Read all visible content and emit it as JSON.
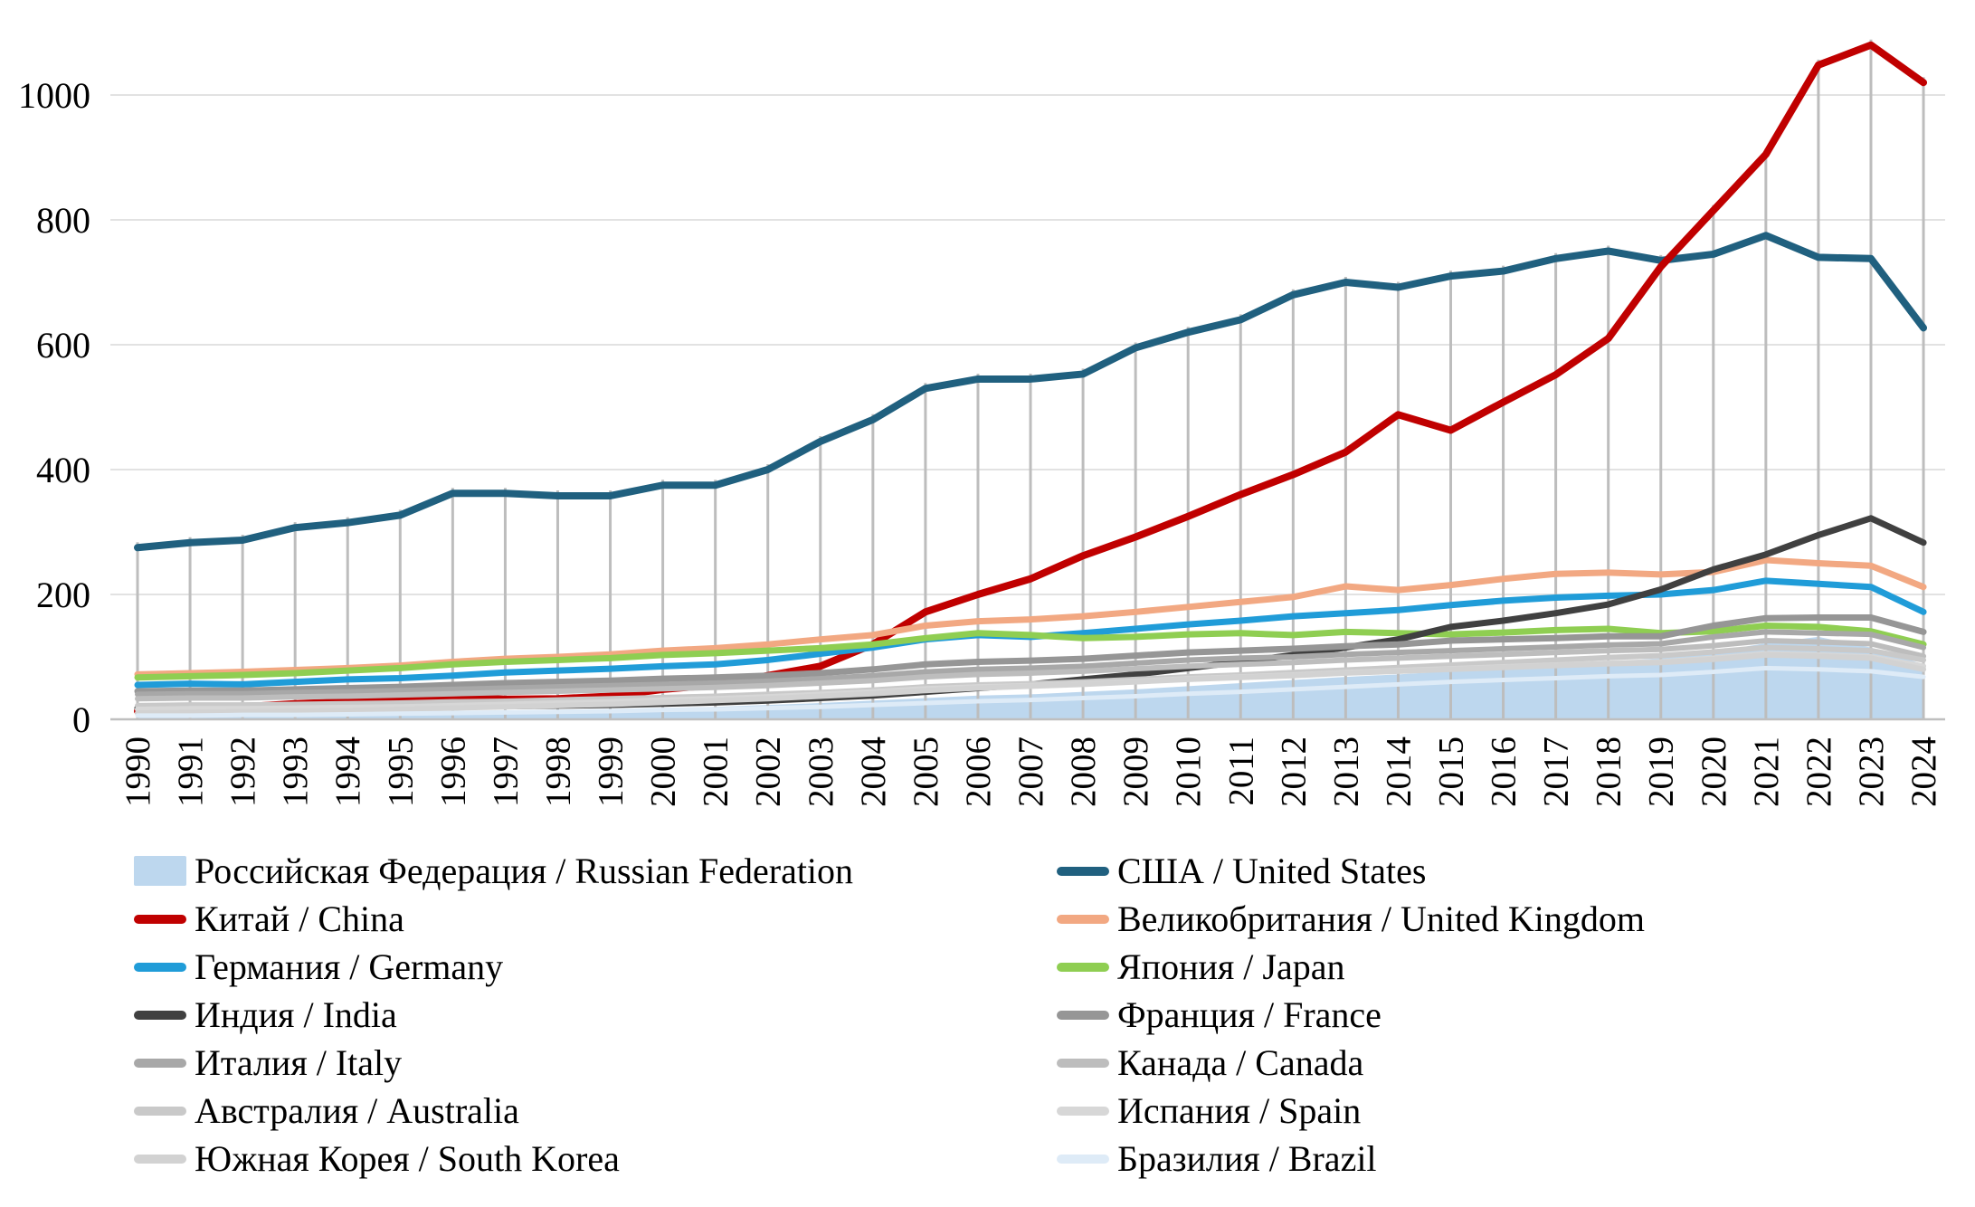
{
  "chart_data": {
    "type": "line",
    "note_layout": {
      "grid": "horizontal gridlines + vertical drop lines to top series",
      "legend_position": "bottom, two columns"
    },
    "x": [
      1990,
      1991,
      1992,
      1993,
      1994,
      1995,
      1996,
      1997,
      1998,
      1999,
      2000,
      2001,
      2002,
      2003,
      2004,
      2005,
      2006,
      2007,
      2008,
      2009,
      2010,
      2011,
      2012,
      2013,
      2014,
      2015,
      2016,
      2017,
      2018,
      2019,
      2020,
      2021,
      2022,
      2023,
      2024
    ],
    "yticks": [
      0,
      200,
      400,
      600,
      800,
      1000
    ],
    "ylim": [
      0,
      1100
    ],
    "colors": {
      "gridline": "#E2E2E2",
      "axis_line": "#BFBFBF",
      "drop_line": "#BDBDBD",
      "text": "#000000"
    },
    "series": [
      {
        "slug": "russia",
        "label": "Российская Федерация / Russian Federation",
        "type": "area",
        "color": "#BDD7EE",
        "width": 0,
        "values": [
          8,
          9,
          9,
          10,
          11,
          12,
          13,
          14,
          15,
          16,
          18,
          20,
          23,
          26,
          30,
          34,
          38,
          40,
          44,
          48,
          53,
          58,
          63,
          68,
          72,
          77,
          82,
          86,
          92,
          98,
          108,
          122,
          132,
          115,
          88
        ]
      },
      {
        "slug": "usa",
        "label": "США / United States",
        "type": "line",
        "color": "#20607F",
        "width": 8,
        "values": [
          275,
          283,
          287,
          307,
          315,
          327,
          362,
          362,
          358,
          358,
          375,
          375,
          400,
          445,
          480,
          530,
          545,
          545,
          553,
          595,
          620,
          640,
          680,
          700,
          692,
          710,
          718,
          738,
          750,
          735,
          745,
          775,
          740,
          738,
          627
        ]
      },
      {
        "slug": "china",
        "label": "Китай / China",
        "type": "line",
        "color": "#C00000",
        "width": 8,
        "values": [
          13,
          15,
          20,
          25,
          28,
          30,
          36,
          32,
          33,
          37,
          48,
          55,
          70,
          85,
          120,
          172,
          200,
          225,
          262,
          292,
          325,
          360,
          392,
          428,
          488,
          463,
          508,
          552,
          610,
          725,
          815,
          905,
          1048,
          1080,
          1020
        ]
      },
      {
        "slug": "uk",
        "label": "Великобритания / United Kingdom",
        "type": "line",
        "color": "#F2A882",
        "width": 7,
        "values": [
          72,
          74,
          76,
          79,
          82,
          86,
          92,
          97,
          100,
          104,
          110,
          114,
          120,
          128,
          135,
          150,
          157,
          160,
          165,
          172,
          180,
          188,
          196,
          213,
          207,
          215,
          225,
          233,
          235,
          232,
          236,
          255,
          250,
          246,
          212
        ]
      },
      {
        "slug": "germany",
        "label": "Германия / Germany",
        "type": "line",
        "color": "#209CD8",
        "width": 7,
        "values": [
          55,
          57,
          56,
          60,
          64,
          66,
          70,
          75,
          78,
          81,
          85,
          88,
          95,
          105,
          115,
          128,
          135,
          132,
          138,
          145,
          152,
          158,
          165,
          170,
          175,
          183,
          190,
          195,
          198,
          200,
          207,
          222,
          217,
          212,
          172
        ]
      },
      {
        "slug": "japan",
        "label": "Япония / Japan",
        "type": "line",
        "color": "#8FCE52",
        "width": 7,
        "values": [
          67,
          69,
          71,
          74,
          78,
          82,
          88,
          92,
          95,
          98,
          103,
          106,
          110,
          114,
          120,
          130,
          138,
          135,
          130,
          132,
          136,
          138,
          135,
          140,
          138,
          136,
          139,
          143,
          145,
          138,
          141,
          150,
          148,
          141,
          120
        ]
      },
      {
        "slug": "india",
        "label": "Индия / India",
        "type": "line",
        "color": "#404040",
        "width": 7,
        "values": [
          18,
          18,
          19,
          19,
          20,
          20,
          21,
          21,
          22,
          23,
          25,
          27,
          30,
          34,
          38,
          44,
          50,
          56,
          64,
          72,
          82,
          92,
          103,
          115,
          128,
          148,
          158,
          170,
          184,
          208,
          240,
          264,
          295,
          322,
          283
        ]
      },
      {
        "slug": "france",
        "label": "Франция / France",
        "type": "line",
        "color": "#969696",
        "width": 7,
        "values": [
          45,
          46,
          46,
          48,
          50,
          52,
          55,
          58,
          60,
          62,
          65,
          67,
          70,
          74,
          80,
          88,
          92,
          94,
          97,
          102,
          107,
          110,
          113,
          117,
          120,
          126,
          128,
          130,
          133,
          133,
          150,
          162,
          163,
          163,
          140
        ]
      },
      {
        "slug": "italy",
        "label": "Италия / Italy",
        "type": "line",
        "color": "#A8A8A8",
        "width": 6,
        "values": [
          40,
          41,
          41,
          43,
          44,
          46,
          48,
          50,
          52,
          54,
          56,
          58,
          61,
          65,
          70,
          76,
          80,
          82,
          85,
          90,
          95,
          98,
          100,
          104,
          107,
          110,
          113,
          116,
          119,
          121,
          132,
          140,
          138,
          136,
          115
        ]
      },
      {
        "slug": "canada",
        "label": "Канада / Canada",
        "type": "line",
        "color": "#BDBDBD",
        "width": 6,
        "values": [
          33,
          34,
          34,
          36,
          37,
          39,
          41,
          43,
          45,
          47,
          49,
          51,
          54,
          58,
          62,
          68,
          72,
          74,
          77,
          81,
          85,
          88,
          91,
          95,
          98,
          101,
          104,
          107,
          110,
          112,
          118,
          126,
          124,
          121,
          101
        ]
      },
      {
        "slug": "australia",
        "label": "Австралия / Australia",
        "type": "line",
        "color": "#C9C9C9",
        "width": 6,
        "values": [
          22,
          23,
          23,
          24,
          25,
          26,
          28,
          29,
          31,
          33,
          35,
          37,
          40,
          43,
          47,
          52,
          55,
          57,
          60,
          64,
          68,
          71,
          75,
          79,
          83,
          87,
          91,
          95,
          99,
          102,
          108,
          115,
          113,
          110,
          95
        ]
      },
      {
        "slug": "spain",
        "label": "Испания / Spain",
        "type": "line",
        "color": "#D7D7D7",
        "width": 6,
        "values": [
          16,
          17,
          17,
          18,
          19,
          20,
          22,
          24,
          26,
          28,
          31,
          33,
          36,
          40,
          44,
          49,
          52,
          54,
          57,
          61,
          65,
          68,
          71,
          75,
          78,
          81,
          84,
          87,
          90,
          92,
          98,
          105,
          103,
          100,
          85
        ]
      },
      {
        "slug": "south-korea",
        "label": "Южная Корея / South Korea",
        "type": "line",
        "color": "#D2D2D2",
        "width": 6,
        "values": [
          10,
          11,
          12,
          13,
          14,
          16,
          18,
          20,
          22,
          24,
          27,
          30,
          33,
          37,
          41,
          46,
          50,
          53,
          56,
          60,
          64,
          67,
          70,
          74,
          77,
          80,
          83,
          86,
          89,
          91,
          96,
          103,
          101,
          98,
          80
        ]
      },
      {
        "slug": "brazil",
        "label": "Бразилия / Brazil",
        "type": "line",
        "color": "#DEEBF7",
        "width": 5,
        "values": [
          6,
          6,
          7,
          7,
          8,
          9,
          10,
          11,
          12,
          13,
          15,
          16,
          18,
          20,
          23,
          26,
          29,
          31,
          34,
          37,
          41,
          44,
          48,
          52,
          56,
          60,
          63,
          66,
          69,
          71,
          76,
          82,
          80,
          77,
          68
        ]
      }
    ],
    "legend_columns": [
      [
        0,
        2,
        4,
        6,
        8,
        10,
        12
      ],
      [
        1,
        3,
        5,
        7,
        9,
        11,
        13
      ]
    ]
  }
}
